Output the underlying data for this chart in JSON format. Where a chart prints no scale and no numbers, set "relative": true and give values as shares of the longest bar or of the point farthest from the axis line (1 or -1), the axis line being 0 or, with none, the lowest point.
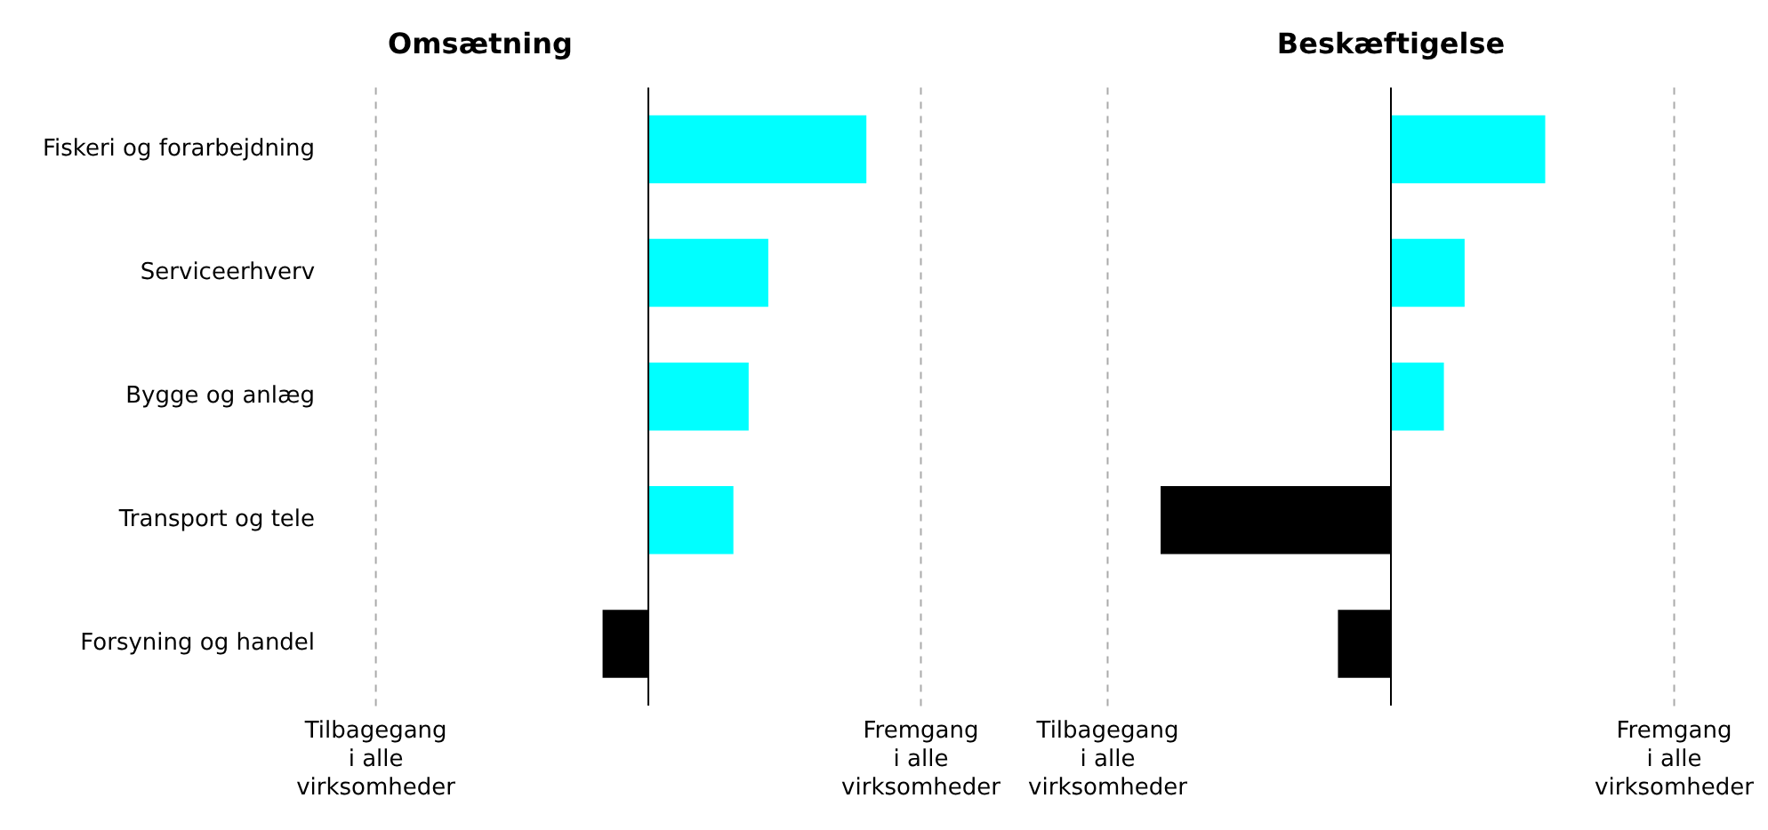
{
  "chart_data": [
    {
      "type": "bar",
      "orientation": "horizontal",
      "title": "Omsætning",
      "relative": true,
      "categories": [
        "Fiskeri og forarbejdning",
        "Serviceerhverv",
        "Bygge og anlæg",
        "Transport og tele",
        "Forsyning og handel"
      ],
      "values": [
        1,
        0.55,
        0.46,
        0.39,
        -0.21
      ],
      "colors": [
        "#00ffff",
        "#00ffff",
        "#00ffff",
        "#00ffff",
        "#000000"
      ],
      "ref_lines": [
        {
          "axis": "x",
          "value": -1.25,
          "label": "Tilbagegang\ni alle\nvirksomheder",
          "color": "#aaaaaa",
          "line_style": "dashed"
        },
        {
          "axis": "x",
          "value": 1.25,
          "label": "Fremgang\ni alle\nvirksomheder",
          "color": "#aaaaaa",
          "line_style": "dashed"
        }
      ],
      "legend": false
    },
    {
      "type": "bar",
      "orientation": "horizontal",
      "title": "Beskæftigelse",
      "relative": true,
      "categories": [
        null,
        null,
        null,
        null,
        null
      ],
      "values": [
        0.67,
        0.32,
        0.23,
        -1,
        -0.23
      ],
      "colors": [
        "#00ffff",
        "#00ffff",
        "#00ffff",
        "#000000",
        "#000000"
      ],
      "ref_lines": [
        {
          "axis": "x",
          "value": -1.23,
          "label": "Tilbagegang\ni alle\nvirksomheder",
          "color": "#aaaaaa",
          "line_style": "dashed"
        },
        {
          "axis": "x",
          "value": 1.23,
          "label": "Fremgang\ni alle\nvirksomheder",
          "color": "#aaaaaa",
          "line_style": "dashed"
        }
      ],
      "legend": false
    }
  ]
}
